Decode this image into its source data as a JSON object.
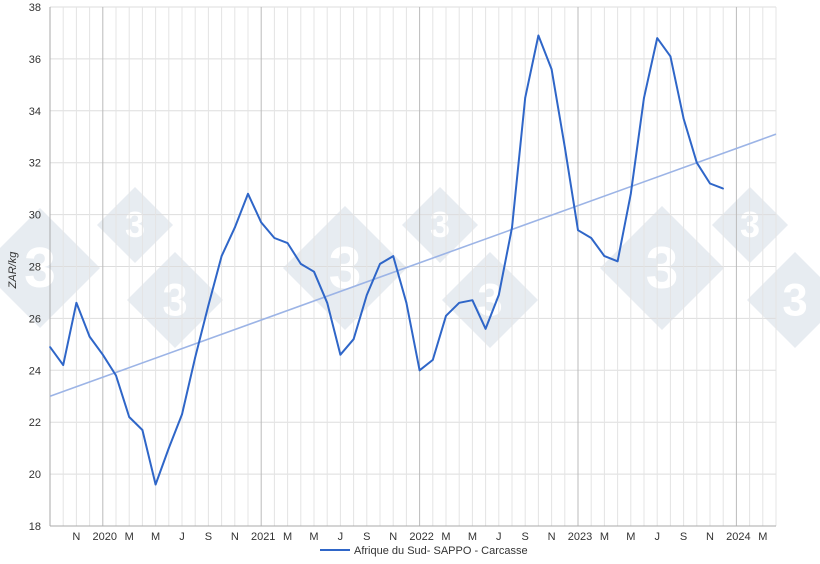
{
  "chart_data": {
    "type": "line",
    "ylabel": "ZAR/kg",
    "ylim": [
      18,
      38
    ],
    "y_ticks": [
      18,
      20,
      22,
      24,
      26,
      28,
      30,
      32,
      34,
      36,
      38
    ],
    "grid": true,
    "legend_position": "bottom-center",
    "x_tick_labels": [
      "N",
      "2020",
      "M",
      "M",
      "J",
      "S",
      "N",
      "2021",
      "M",
      "M",
      "J",
      "S",
      "N",
      "2022",
      "M",
      "M",
      "J",
      "S",
      "N",
      "2023",
      "M",
      "M",
      "J",
      "S",
      "N",
      "2024",
      "M"
    ],
    "x_range_months": [
      "2019-09",
      "2024-04"
    ],
    "series": [
      {
        "name": "Afrique du Sud- SAPPO - Carcasse",
        "color": "#2f66c8",
        "points": [
          [
            "2019-09",
            24.9
          ],
          [
            "2019-10",
            24.2
          ],
          [
            "2019-11",
            26.6
          ],
          [
            "2019-12",
            25.3
          ],
          [
            "2020-01",
            24.6
          ],
          [
            "2020-02",
            23.8
          ],
          [
            "2020-03",
            22.2
          ],
          [
            "2020-04",
            21.7
          ],
          [
            "2020-05",
            19.6
          ],
          [
            "2020-06",
            21.0
          ],
          [
            "2020-07",
            22.3
          ],
          [
            "2020-08",
            24.5
          ],
          [
            "2020-09",
            26.5
          ],
          [
            "2020-10",
            28.4
          ],
          [
            "2020-11",
            29.5
          ],
          [
            "2020-12",
            30.8
          ],
          [
            "2021-01",
            29.7
          ],
          [
            "2021-02",
            29.1
          ],
          [
            "2021-03",
            28.9
          ],
          [
            "2021-04",
            28.1
          ],
          [
            "2021-05",
            27.8
          ],
          [
            "2021-06",
            26.6
          ],
          [
            "2021-07",
            24.6
          ],
          [
            "2021-08",
            25.2
          ],
          [
            "2021-09",
            26.9
          ],
          [
            "2021-10",
            28.1
          ],
          [
            "2021-11",
            28.4
          ],
          [
            "2021-12",
            26.6
          ],
          [
            "2022-01",
            24.0
          ],
          [
            "2022-02",
            24.4
          ],
          [
            "2022-03",
            26.1
          ],
          [
            "2022-04",
            26.6
          ],
          [
            "2022-05",
            26.7
          ],
          [
            "2022-06",
            25.6
          ],
          [
            "2022-07",
            26.9
          ],
          [
            "2022-08",
            29.5
          ],
          [
            "2022-09",
            34.5
          ],
          [
            "2022-10",
            36.9
          ],
          [
            "2022-11",
            35.6
          ],
          [
            "2022-12",
            32.6
          ],
          [
            "2023-01",
            29.4
          ],
          [
            "2023-02",
            29.1
          ],
          [
            "2023-03",
            28.4
          ],
          [
            "2023-04",
            28.2
          ],
          [
            "2023-05",
            30.8
          ],
          [
            "2023-06",
            34.5
          ],
          [
            "2023-07",
            36.8
          ],
          [
            "2023-08",
            36.1
          ],
          [
            "2023-09",
            33.7
          ],
          [
            "2023-10",
            32.0
          ],
          [
            "2023-11",
            31.2
          ],
          [
            "2023-12",
            31.0
          ]
        ]
      }
    ],
    "trend_line": {
      "color": "#9cb4e6",
      "start": [
        "2019-09",
        23.0
      ],
      "end": [
        "2024-04",
        33.1
      ]
    }
  },
  "watermark": {
    "glyph": "3",
    "color": "#d3dde5"
  }
}
